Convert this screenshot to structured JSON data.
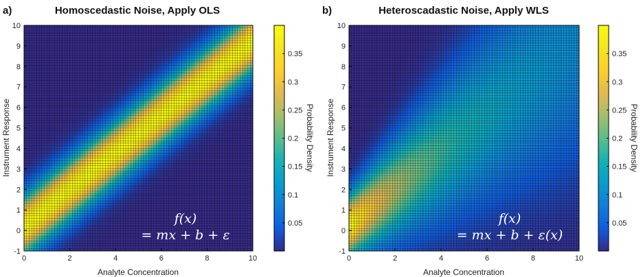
{
  "chart_data": [
    {
      "type": "heatmap",
      "panel_label": "a)",
      "title": "Homoscedastic Noise, Apply OLS",
      "xlabel": "Analyte Concentration",
      "ylabel": "Instrument Response",
      "colorbar_label": "Probability Density",
      "xlim": [
        0,
        10
      ],
      "ylim": [
        -1,
        10
      ],
      "x_ticks": [
        "0",
        "2",
        "4",
        "6",
        "8",
        "10"
      ],
      "y_ticks": [
        "-1",
        "0",
        "1",
        "2",
        "3",
        "4",
        "5",
        "6",
        "7",
        "8",
        "9",
        "10"
      ],
      "colorbar_range": [
        0,
        0.4
      ],
      "colorbar_ticks": [
        "0.05",
        "0.1",
        "0.15",
        "0.2",
        "0.25",
        "0.3",
        "0.35"
      ],
      "colormap": "parula",
      "grid": "on",
      "model": {
        "slope": 0.9,
        "intercept": 0.2,
        "sigma": "constant",
        "sigma_value": 1.0
      },
      "formula_lines": [
        "f(x)",
        "= mx + b + ε"
      ]
    },
    {
      "type": "heatmap",
      "panel_label": "b)",
      "title": "Heteroscadastic Noise, Apply WLS",
      "xlabel": "Analyte Concentration",
      "ylabel": "Instrument Response",
      "colorbar_label": "Probability Density",
      "xlim": [
        0,
        10
      ],
      "ylim": [
        -1,
        10
      ],
      "x_ticks": [
        "0",
        "2",
        "4",
        "6",
        "8",
        "10"
      ],
      "y_ticks": [
        "-1",
        "0",
        "1",
        "2",
        "3",
        "4",
        "5",
        "6",
        "7",
        "8",
        "9",
        "10"
      ],
      "colorbar_range": [
        0,
        0.4
      ],
      "colorbar_ticks": [
        "0.05",
        "0.1",
        "0.15",
        "0.2",
        "0.25",
        "0.3",
        "0.35"
      ],
      "colormap": "parula",
      "grid": "on",
      "model": {
        "slope": 0.9,
        "intercept": 0.2,
        "sigma": "increasing",
        "sigma_at_zero": 1.0,
        "sigma_slope": 0.3
      },
      "formula_lines": [
        "f(x)",
        "= mx + b + ε(x)"
      ]
    }
  ]
}
